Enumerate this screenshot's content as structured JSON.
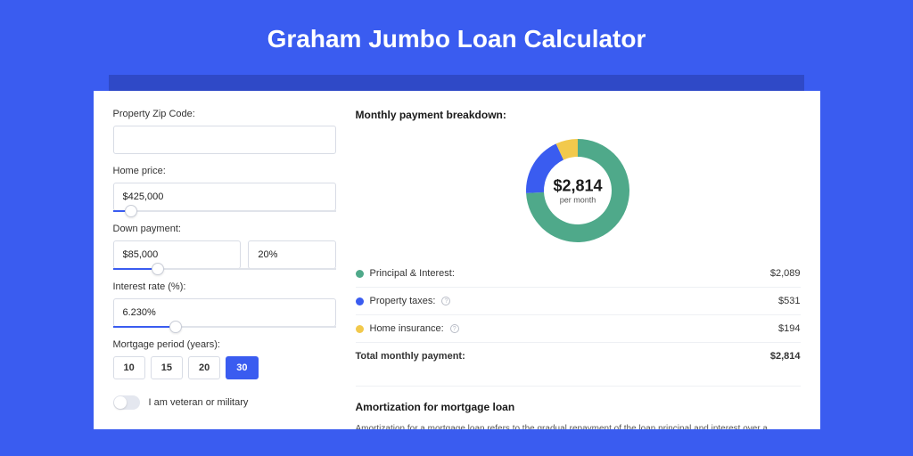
{
  "page": {
    "title": "Graham Jumbo Loan Calculator",
    "bg_color": "#3a5cf0",
    "shadow_color": "#2f49c7"
  },
  "form": {
    "zip_label": "Property Zip Code:",
    "zip_value": "",
    "home_price_label": "Home price:",
    "home_price_value": "$425,000",
    "home_price_slider_pct": 8,
    "down_payment_label": "Down payment:",
    "down_payment_value": "$85,000",
    "down_payment_pct": "20%",
    "down_payment_slider_pct": 20,
    "interest_label": "Interest rate (%):",
    "interest_value": "6.230%",
    "interest_slider_pct": 28,
    "period_label": "Mortgage period (years):",
    "period_options": [
      "10",
      "15",
      "20",
      "30"
    ],
    "period_selected_index": 3,
    "veteran_label": "I am veteran or military",
    "veteran_on": false
  },
  "breakdown": {
    "title": "Monthly payment breakdown:",
    "donut": {
      "amount": "$2,814",
      "sub": "per month",
      "slices": [
        {
          "label": "Principal & Interest",
          "value": 2089,
          "color": "#4fa98a",
          "pct": 74.2
        },
        {
          "label": "Property taxes",
          "value": 531,
          "color": "#3a5cf0",
          "pct": 18.9
        },
        {
          "label": "Home insurance",
          "value": 194,
          "color": "#f2c94c",
          "pct": 6.9
        }
      ],
      "outer_radius": 58,
      "inner_radius": 38
    },
    "rows": [
      {
        "label": "Principal & Interest:",
        "value": "$2,089",
        "color": "#4fa98a",
        "info": false
      },
      {
        "label": "Property taxes:",
        "value": "$531",
        "color": "#3a5cf0",
        "info": true
      },
      {
        "label": "Home insurance:",
        "value": "$194",
        "color": "#f2c94c",
        "info": true
      }
    ],
    "total_label": "Total monthly payment:",
    "total_value": "$2,814"
  },
  "amortization": {
    "title": "Amortization for mortgage loan",
    "text": "Amortization for a mortgage loan refers to the gradual repayment of the loan principal and interest over a specified"
  }
}
